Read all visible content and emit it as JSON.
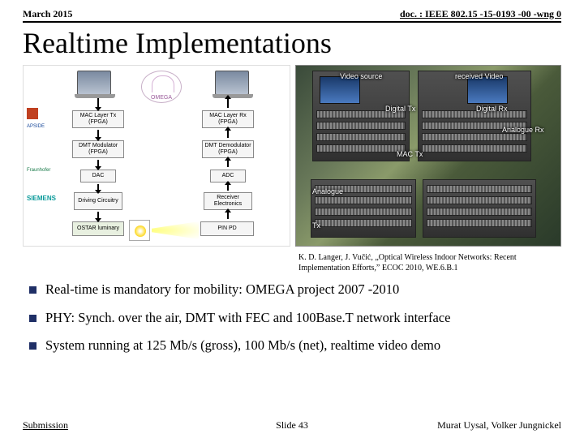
{
  "header": {
    "date": "March 2015",
    "doc": "doc. : IEEE 802.15 -15-0193 -00 -wng 0"
  },
  "title": "Realtime Implementations",
  "diagram": {
    "omega_label": "OMEGA",
    "boxes": {
      "mac_tx": "MAC Layer Tx (FPGA)",
      "mac_rx": "MAC Layer Rx (FPGA)",
      "dmt_mod": "DMT Modulator (FPGA)",
      "dmt_demod": "DMT Demodulator (FPGA)",
      "dac": "DAC",
      "adc": "ADC",
      "drv": "Driving Circuitry",
      "rx_elec": "Receiver Electronics",
      "luminary": "OSTAR luminary",
      "pinpd": "PIN PD"
    },
    "logos": {
      "apside": "APSIDE",
      "fraunhofer": "Fraunhofer",
      "siemens": "SIEMENS"
    }
  },
  "photo": {
    "labels": {
      "video_source": "Video source",
      "received_video": "received Video",
      "digital_tx": "Digital Tx",
      "digital_rx": "Digital Rx",
      "analogue_rx": "Analogue Rx",
      "mac_tx": "MAC Tx",
      "analogue": "Analogue",
      "tx": "Tx"
    }
  },
  "citation": "K. D. Langer, J. Vučić, „Optical Wireless Indoor Networks: Recent Implementation Efforts,” ECOC 2010, WE.6.B.1",
  "bullets": [
    "Real-time is mandatory for mobility: OMEGA project 2007 -2010",
    "PHY: Synch. over the air, DMT with FEC and 100Base.T network interface",
    "System running at 125 Mb/s (gross), 100 Mb/s (net), realtime video demo"
  ],
  "footer": {
    "left": "Submission",
    "center": "Slide 43",
    "right": "Murat Uysal, Volker Jungnickel"
  },
  "colors": {
    "bullet_square": "#1f2f66",
    "background": "#ffffff"
  }
}
